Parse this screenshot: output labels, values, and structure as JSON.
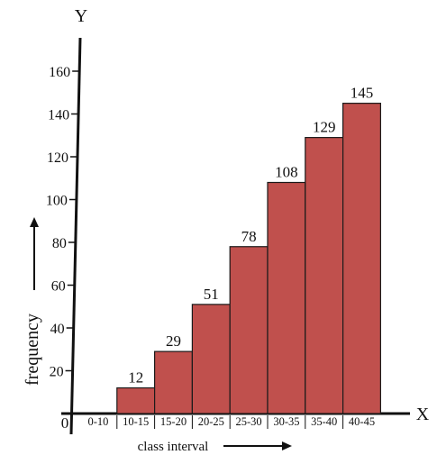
{
  "chart_data": {
    "type": "bar",
    "categories": [
      "0-10",
      "10-15",
      "15-20",
      "20-25",
      "25-30",
      "30-35",
      "35-40",
      "40-45"
    ],
    "values": [
      0,
      12,
      29,
      51,
      78,
      108,
      129,
      145
    ],
    "data_labels": [
      "",
      "12",
      "29",
      "51",
      "78",
      "108",
      "129",
      "145"
    ],
    "title": "",
    "xlabel": "class interval",
    "ylabel": "frequency",
    "x_axis_name": "X",
    "y_axis_name": "Y",
    "origin_label": "0",
    "y_ticks": [
      20,
      40,
      60,
      80,
      100,
      120,
      140,
      160
    ],
    "ylim": [
      0,
      160
    ],
    "grid": false,
    "legend": "none",
    "bar_color": "#c0504d",
    "bar_edge_color": "#1a1a1a"
  }
}
